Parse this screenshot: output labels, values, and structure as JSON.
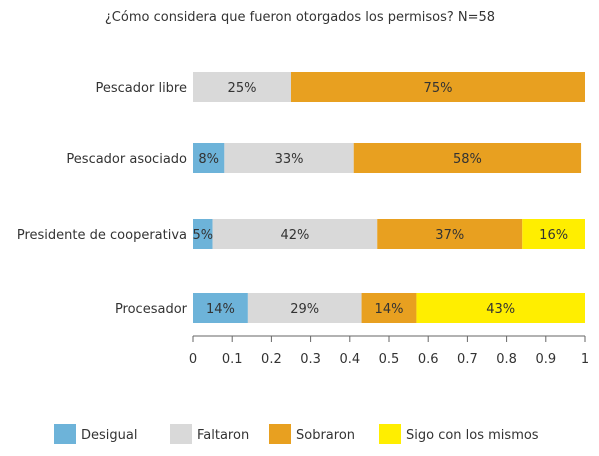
{
  "chart_data": {
    "type": "bar",
    "orientation": "horizontal",
    "stacked": true,
    "title": "¿Cómo considera que fueron otorgados los permisos? N=58",
    "categories": [
      "Pescador libre",
      "Pescador asociado",
      "Presidente de cooperativa",
      "Procesador"
    ],
    "series": [
      {
        "name": "Desigual",
        "color": "#6db3d9",
        "values": [
          0,
          0.08,
          0.05,
          0.14
        ],
        "labels": [
          "",
          "8%",
          "5%",
          "14%"
        ]
      },
      {
        "name": "Faltaron",
        "color": "#d9d9d9",
        "values": [
          0.25,
          0.33,
          0.42,
          0.29
        ],
        "labels": [
          "25%",
          "33%",
          "42%",
          "29%"
        ]
      },
      {
        "name": "Sobraron",
        "color": "#e8a020",
        "values": [
          0.75,
          0.58,
          0.37,
          0.14
        ],
        "labels": [
          "75%",
          "58%",
          "37%",
          "14%"
        ]
      },
      {
        "name": "Sigo con los mismos",
        "color": "#ffee00",
        "values": [
          0,
          0,
          0.16,
          0.43
        ],
        "labels": [
          "",
          "",
          "16%",
          "43%"
        ]
      }
    ],
    "xlim": [
      0,
      1
    ],
    "xticks": [
      "0",
      "0.1",
      "0.2",
      "0.3",
      "0.4",
      "0.5",
      "0.6",
      "0.7",
      "0.8",
      "0.9",
      "1"
    ],
    "grid": false,
    "legend_position": "bottom"
  }
}
